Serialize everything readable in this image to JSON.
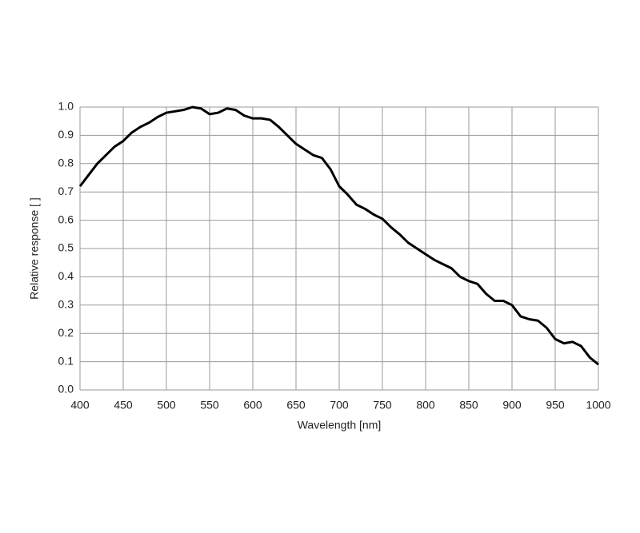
{
  "chart_data": {
    "type": "line",
    "x_label": "Wavelength [nm]",
    "y_label": "Relative response [ ]",
    "x": [
      400,
      410,
      420,
      430,
      440,
      450,
      460,
      470,
      480,
      490,
      500,
      510,
      520,
      530,
      540,
      550,
      560,
      570,
      580,
      590,
      600,
      610,
      620,
      630,
      640,
      650,
      660,
      670,
      680,
      690,
      700,
      710,
      720,
      730,
      740,
      750,
      760,
      770,
      780,
      790,
      800,
      810,
      820,
      830,
      840,
      850,
      860,
      870,
      880,
      890,
      900,
      910,
      920,
      930,
      940,
      950,
      960,
      970,
      980,
      990,
      1000
    ],
    "series": [
      {
        "color": "#000000",
        "values": [
          0.72,
          0.76,
          0.8,
          0.83,
          0.86,
          0.88,
          0.91,
          0.93,
          0.945,
          0.965,
          0.98,
          0.985,
          0.99,
          1.0,
          0.995,
          0.975,
          0.98,
          0.995,
          0.99,
          0.97,
          0.96,
          0.96,
          0.955,
          0.93,
          0.9,
          0.87,
          0.85,
          0.83,
          0.82,
          0.78,
          0.72,
          0.69,
          0.655,
          0.64,
          0.62,
          0.605,
          0.575,
          0.55,
          0.52,
          0.5,
          0.48,
          0.46,
          0.445,
          0.43,
          0.4,
          0.385,
          0.375,
          0.34,
          0.315,
          0.315,
          0.3,
          0.26,
          0.25,
          0.245,
          0.22,
          0.18,
          0.165,
          0.17,
          0.155,
          0.115,
          0.09
        ]
      }
    ],
    "xlim": [
      400,
      1000
    ],
    "xticks": [
      400,
      450,
      500,
      550,
      600,
      650,
      700,
      750,
      800,
      850,
      900,
      950,
      1000
    ],
    "ylim": [
      0,
      1
    ],
    "yticks": [
      {
        "value": 0,
        "label": "0.0"
      },
      0.1,
      0.2,
      0.3,
      0.4,
      0.5,
      0.6,
      0.7,
      0.8,
      0.9,
      {
        "value": 1,
        "label": "1.0"
      }
    ],
    "grid": true
  }
}
